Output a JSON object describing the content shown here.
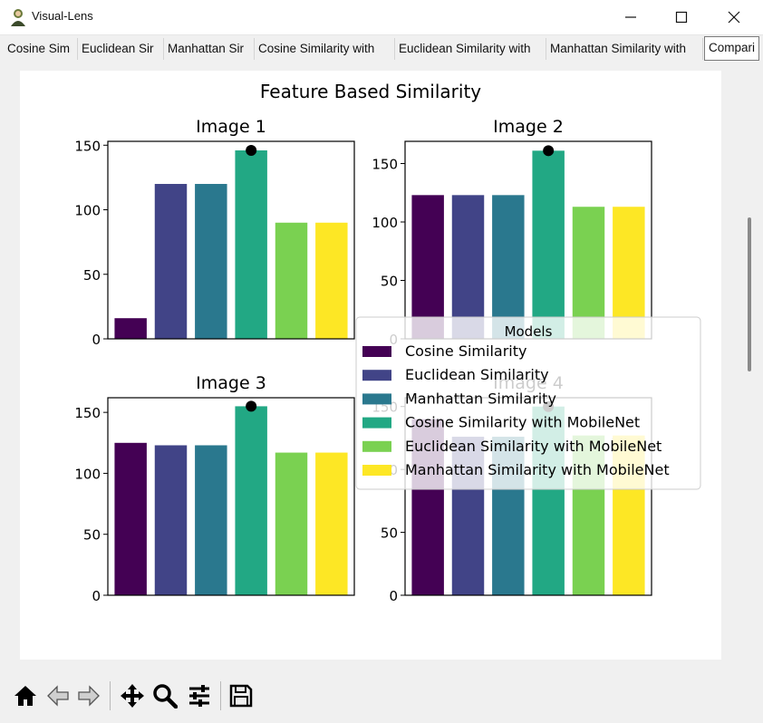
{
  "window": {
    "title": "Visual-Lens",
    "controls": [
      "minimize-icon",
      "maximize-icon",
      "close-icon"
    ]
  },
  "tabs": [
    {
      "label": "Cosine Sim"
    },
    {
      "label": "Euclidean Sir"
    },
    {
      "label": "Manhattan Sir"
    },
    {
      "label": "Cosine Similarity with"
    },
    {
      "label": "Euclidean Similarity with"
    },
    {
      "label": "Manhattan Similarity with"
    },
    {
      "label": "Compari",
      "active": true
    }
  ],
  "toolbar": {
    "icons": [
      "home-icon",
      "back-icon",
      "forward-icon",
      "pan-icon",
      "zoom-icon",
      "configure-subplots-icon",
      "save-icon"
    ]
  },
  "colors": {
    "series": [
      "#440154",
      "#414487",
      "#2a788e",
      "#22a884",
      "#7ad151",
      "#fde725"
    ],
    "marker": "#000000"
  },
  "chart_data": {
    "type": "bar",
    "title": "Feature Based Similarity",
    "legend": {
      "title": "Models",
      "placement": "center",
      "entries": [
        "Cosine Similarity",
        "Euclidean Similarity",
        "Manhattan Similarity",
        "Cosine Similarity with MobileNet",
        "Euclidean Similarity with MobileNet",
        "Manhattan Similarity with MobileNet"
      ]
    },
    "subplots": [
      {
        "title": "Image 1",
        "values": [
          16,
          120,
          120,
          146,
          90,
          90
        ],
        "marker_index": 3,
        "ylim": [
          0,
          153
        ],
        "yticks": [
          0,
          50,
          100,
          150
        ]
      },
      {
        "title": "Image 2",
        "values": [
          123,
          123,
          123,
          161,
          113,
          113
        ],
        "marker_index": 3,
        "ylim": [
          0,
          169
        ],
        "yticks": [
          0,
          50,
          100,
          150
        ]
      },
      {
        "title": "Image 3",
        "values": [
          125,
          123,
          123,
          155,
          117,
          117
        ],
        "marker_index": 3,
        "ylim": [
          0,
          162
        ],
        "yticks": [
          0,
          50,
          100,
          150
        ]
      },
      {
        "title": "Image 4",
        "values": [
          140,
          126,
          126,
          150,
          127,
          127
        ],
        "marker_index": 3,
        "ylim": [
          0,
          157
        ],
        "yticks": [
          0,
          50,
          100,
          150
        ]
      }
    ]
  }
}
